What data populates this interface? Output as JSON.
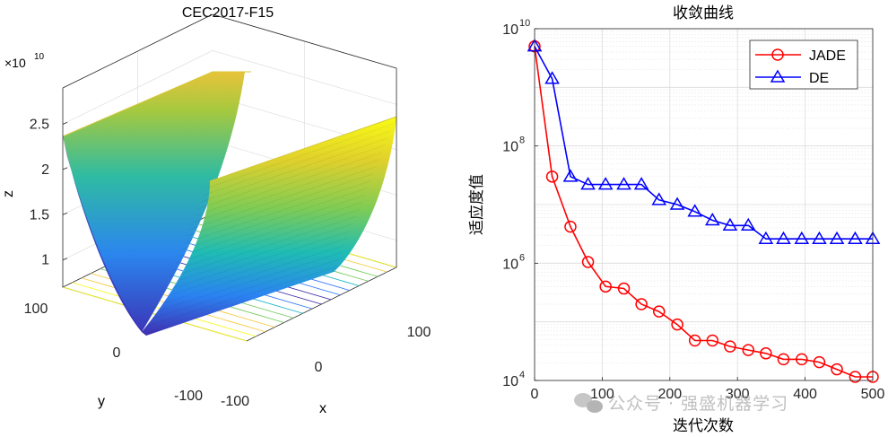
{
  "chart_data": [
    {
      "type": "surface3d",
      "title": "CEC2017-F15",
      "xlabel": "x",
      "ylabel": "y",
      "zlabel": "z",
      "x_ticks": [
        "-100",
        "0",
        "100"
      ],
      "y_ticks": [
        "-100",
        "0",
        "100"
      ],
      "z_ticks": [
        "1",
        "1.5",
        "2",
        "2.5"
      ],
      "z_exponent": "×10",
      "z_exponent_power": "10",
      "zlim": [
        0.7,
        2.9
      ],
      "colormap": [
        "#3e26a8",
        "#2c73fb",
        "#16b7c0",
        "#72c95a",
        "#f6c93a",
        "#f9fb15"
      ]
    },
    {
      "type": "line",
      "yscale": "log",
      "title": "收敛曲线",
      "xlabel": "迭代次数",
      "ylabel": "适应度值",
      "xlim": [
        0,
        500
      ],
      "ylim_exp": [
        4,
        10
      ],
      "x_ticks": [
        "0",
        "100",
        "200",
        "300",
        "400",
        "500"
      ],
      "y_tick_base": "10",
      "y_tick_exps": [
        "4",
        "6",
        "8",
        "10"
      ],
      "x": [
        0,
        26,
        53,
        79,
        105,
        132,
        158,
        184,
        211,
        237,
        263,
        289,
        316,
        342,
        368,
        395,
        421,
        447,
        474,
        500
      ],
      "series": [
        {
          "name": "JADE",
          "color": "#ff0000",
          "marker": "circle",
          "values": [
            5000000000.0,
            30000000.0,
            4200000.0,
            1050000.0,
            400000.0,
            370000.0,
            200000.0,
            150000.0,
            90000.0,
            48000.0,
            48000.0,
            38000.0,
            33000.0,
            29000.0,
            23000.0,
            23000.0,
            20500.0,
            15500.0,
            11500.0,
            11500.0
          ]
        },
        {
          "name": "DE",
          "color": "#0000ff",
          "marker": "triangle",
          "values": [
            5000000000.0,
            1400000000.0,
            30000000.0,
            22000000.0,
            22000000.0,
            22000000.0,
            22000000.0,
            12000000.0,
            10000000.0,
            7600000.0,
            5400000.0,
            4400000.0,
            4400000.0,
            2600000.0,
            2600000.0,
            2600000.0,
            2600000.0,
            2600000.0,
            2600000.0,
            2600000.0
          ]
        }
      ]
    }
  ],
  "watermark": "公众号 · 强盛机器学习"
}
